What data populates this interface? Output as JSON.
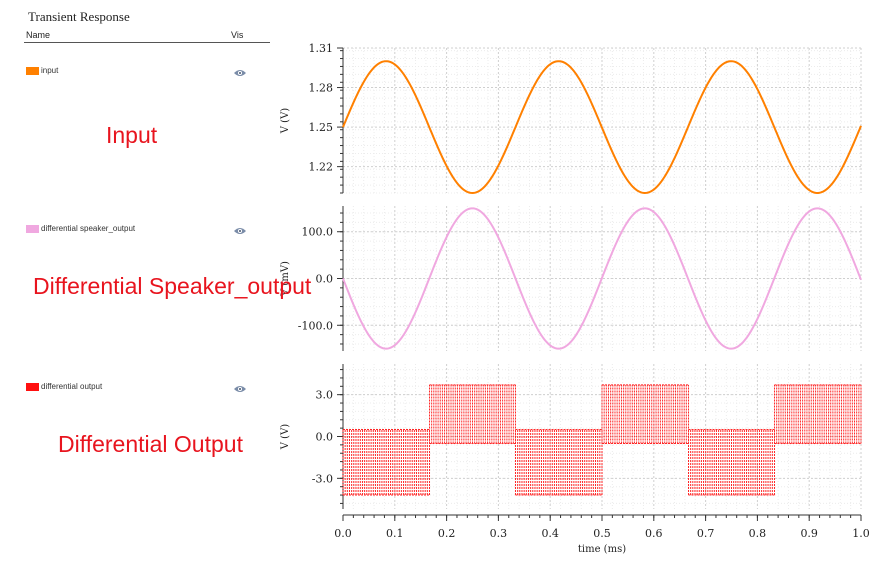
{
  "panel": {
    "title": "Transient Response",
    "name_header": "Name",
    "vis_header": "Vis"
  },
  "legend": [
    {
      "label": "input",
      "color": "#ff8000",
      "icon": "eye-icon"
    },
    {
      "label": "differential speaker_output",
      "color": "#f0a8e0",
      "icon": "eye-icon"
    },
    {
      "label": "differential output",
      "color": "#ff1010",
      "icon": "eye-icon"
    }
  ],
  "annotations": {
    "input": "Input",
    "speaker": "Differential  Speaker_output",
    "output": "Differential Output"
  },
  "chart_data": [
    {
      "type": "line",
      "series": [
        {
          "name": "input",
          "color": "#ff8000"
        }
      ],
      "x_range": [
        0,
        1.0
      ],
      "ylabel": "V (V)",
      "ylim": [
        1.2,
        1.31
      ],
      "yticks": [
        1.31,
        1.28,
        1.25,
        1.22
      ],
      "ytick_labels": [
        "1.31",
        "1.28",
        "1.25",
        "1.22"
      ],
      "waveform": {
        "shape": "sine",
        "offset": 1.25,
        "amplitude": 0.05,
        "period_ms": 0.333,
        "phase": 0
      },
      "grid": true
    },
    {
      "type": "line",
      "series": [
        {
          "name": "differential speaker_output",
          "color": "#f0a8e0"
        }
      ],
      "x_range": [
        0,
        1.0
      ],
      "ylabel": "V (mV)",
      "ylim": [
        -155,
        155
      ],
      "yticks": [
        100,
        0,
        -100
      ],
      "ytick_labels": [
        "100.0",
        "0.0",
        "-100.0"
      ],
      "waveform": {
        "shape": "sine",
        "offset": 0,
        "amplitude": 150,
        "period_ms": 0.333,
        "phase": "negative-start"
      },
      "grid": true
    },
    {
      "type": "line",
      "series": [
        {
          "name": "differential output",
          "color": "#ff1010"
        }
      ],
      "x_range": [
        0,
        1.0
      ],
      "xlabel": "time (ms)",
      "ylabel": "V (V)",
      "ylim": [
        -5.2,
        5.2
      ],
      "yticks": [
        3.0,
        0.0,
        -3.0
      ],
      "ytick_labels": [
        "3.0",
        "0.0",
        "-3.0"
      ],
      "xticks": [
        0.0,
        0.1,
        0.2,
        0.3,
        0.4,
        0.5,
        0.6,
        0.7,
        0.8,
        0.9,
        1.0
      ],
      "xtick_labels": [
        "0.0",
        "0.1",
        "0.2",
        "0.3",
        "0.4",
        "0.5",
        "0.6",
        "0.7",
        "0.8",
        "0.9",
        "1.0"
      ],
      "waveform": {
        "shape": "pwm-band",
        "segments": [
          {
            "x0": 0.0,
            "x1": 0.167,
            "low": -4.2,
            "high": 0.5
          },
          {
            "x0": 0.167,
            "x1": 0.333,
            "low": -0.5,
            "high": 3.7
          },
          {
            "x0": 0.333,
            "x1": 0.5,
            "low": -4.2,
            "high": 0.5
          },
          {
            "x0": 0.5,
            "x1": 0.667,
            "low": -0.5,
            "high": 3.7
          },
          {
            "x0": 0.667,
            "x1": 0.833,
            "low": -4.2,
            "high": 0.5
          },
          {
            "x0": 0.833,
            "x1": 1.0,
            "low": -0.5,
            "high": 3.7
          }
        ]
      },
      "grid": true
    }
  ]
}
